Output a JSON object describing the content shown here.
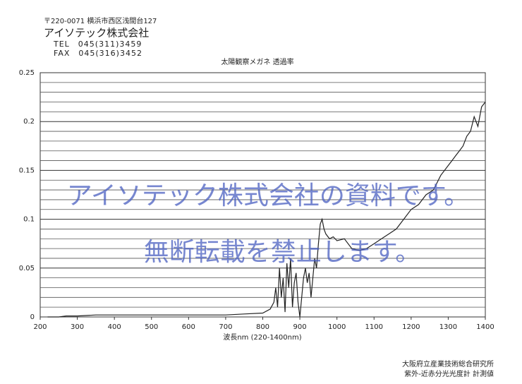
{
  "header": {
    "address": "〒220-0071 横浜市西区浅間台127",
    "company": "アイソテック株式会社",
    "tel": "TEL　045(311)3459",
    "fax": "FAX　045(316)3452"
  },
  "chart_data": {
    "type": "line",
    "title": "太陽観察メガネ 透過率",
    "x_label": "波長nm (220-1400nm)",
    "x": [
      220,
      250,
      270,
      300,
      350,
      400,
      500,
      600,
      700,
      750,
      800,
      820,
      830,
      835,
      840,
      845,
      850,
      855,
      860,
      865,
      870,
      875,
      880,
      885,
      890,
      895,
      900,
      905,
      910,
      915,
      920,
      925,
      930,
      935,
      940,
      945,
      950,
      955,
      960,
      965,
      970,
      980,
      990,
      1000,
      1020,
      1040,
      1060,
      1080,
      1100,
      1120,
      1140,
      1160,
      1180,
      1200,
      1220,
      1240,
      1260,
      1280,
      1300,
      1310,
      1320,
      1330,
      1340,
      1350,
      1360,
      1370,
      1380,
      1390,
      1400
    ],
    "values": [
      0,
      0,
      0.001,
      0.001,
      0.002,
      0.002,
      0.002,
      0.002,
      0.002,
      0.003,
      0.004,
      0.008,
      0.015,
      0.03,
      0.01,
      0.05,
      0.02,
      0.04,
      0.005,
      0.055,
      0.03,
      0.06,
      0.01,
      0.035,
      0.045,
      0.015,
      0.0,
      0.02,
      0.04,
      0.05,
      0.035,
      0.045,
      0.02,
      0.04,
      0.06,
      0.05,
      0.075,
      0.095,
      0.1,
      0.09,
      0.085,
      0.08,
      0.082,
      0.078,
      0.08,
      0.07,
      0.068,
      0.07,
      0.075,
      0.08,
      0.085,
      0.09,
      0.1,
      0.11,
      0.115,
      0.125,
      0.13,
      0.145,
      0.155,
      0.16,
      0.165,
      0.17,
      0.175,
      0.185,
      0.19,
      0.205,
      0.195,
      0.215,
      0.22
    ],
    "color": "#222222",
    "xlim": [
      200,
      1400
    ],
    "xticks": [
      200,
      300,
      400,
      500,
      600,
      700,
      800,
      900,
      1000,
      1100,
      1200,
      1300,
      1400
    ],
    "ylim": [
      0,
      0.25
    ],
    "yticks": [
      0,
      0.05,
      0.1,
      0.15,
      0.2,
      0.25
    ],
    "y_minor_grid": [
      0.01,
      0.02,
      0.03,
      0.04,
      0.06,
      0.07,
      0.08,
      0.09,
      0.11,
      0.12,
      0.13,
      0.14,
      0.16,
      0.17,
      0.18,
      0.19,
      0.21,
      0.22,
      0.23,
      0.24
    ],
    "grid": true
  },
  "footer": {
    "institute": "大阪府立産業技術総合研究所",
    "instrument": "紫外-近赤分光光度計 計測値"
  },
  "watermark": {
    "line1": "アイソテック株式会社の資料です。",
    "line2": "無断転載を禁止します。"
  }
}
